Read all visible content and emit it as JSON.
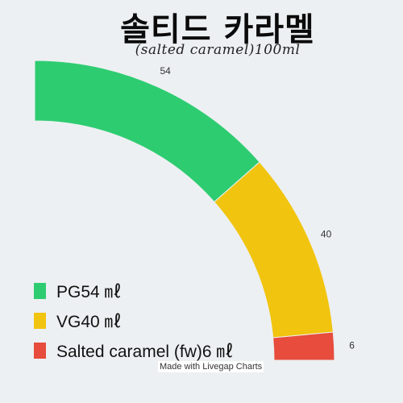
{
  "title": "솔티드 카라멜",
  "subtitle": "(salted caramel)100ml",
  "footer": "Made with Livegap Charts",
  "legend": [
    {
      "label": "PG54 ㎖",
      "color": "#2ecc71"
    },
    {
      "label": "VG40 ㎖",
      "color": "#f1c40f"
    },
    {
      "label": "Salted caramel (fw)6 ㎖",
      "color": "#e74c3c"
    }
  ],
  "chart_data": {
    "type": "pie",
    "title": "솔티드 카라멜",
    "subtitle": "(salted caramel)100ml",
    "categories": [
      "PG",
      "VG",
      "Salted caramel (fw)"
    ],
    "values": [
      54,
      40,
      6
    ],
    "colors": [
      "#2ecc71",
      "#f1c40f",
      "#e74c3c"
    ],
    "data_labels": [
      "54",
      "40",
      "6"
    ],
    "legend_position": "bottom-left"
  }
}
